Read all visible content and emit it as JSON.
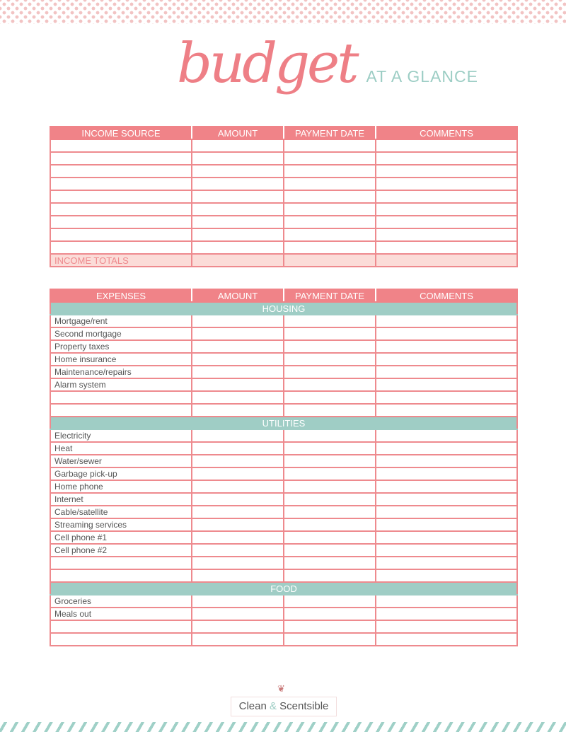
{
  "title": {
    "script": "budget",
    "subtitle": "AT A GLANCE"
  },
  "colors": {
    "accent_pink": "#f08388",
    "accent_teal": "#9fcdc5",
    "totals_bg": "#fbdcd8"
  },
  "income": {
    "headers": [
      "INCOME SOURCE",
      "AMOUNT",
      "PAYMENT DATE",
      "COMMENTS"
    ],
    "rows": [
      "",
      "",
      "",
      "",
      "",
      "",
      "",
      "",
      "",
      ""
    ],
    "totals_label": "INCOME TOTALS"
  },
  "expenses": {
    "headers": [
      "EXPENSES",
      "AMOUNT",
      "PAYMENT DATE",
      "COMMENTS"
    ],
    "sections": [
      {
        "title": "HOUSING",
        "rows": [
          "Mortgage/rent",
          "Second mortgage",
          "Property taxes",
          "Home insurance",
          "Maintenance/repairs",
          "Alarm system",
          "",
          ""
        ]
      },
      {
        "title": "UTILITIES",
        "rows": [
          "Electricity",
          "Heat",
          "Water/sewer",
          "Garbage pick-up",
          "Home phone",
          "Internet",
          "Cable/satellite",
          "Streaming services",
          "Cell phone #1",
          "Cell phone #2",
          "",
          ""
        ]
      },
      {
        "title": "FOOD",
        "rows": [
          "Groceries",
          "Meals out",
          "",
          ""
        ]
      }
    ]
  },
  "footer": {
    "brand_left": "Clean",
    "brand_amp": "&",
    "brand_right": "Scentsible",
    "logo_icon": "floral-sprig-icon"
  }
}
